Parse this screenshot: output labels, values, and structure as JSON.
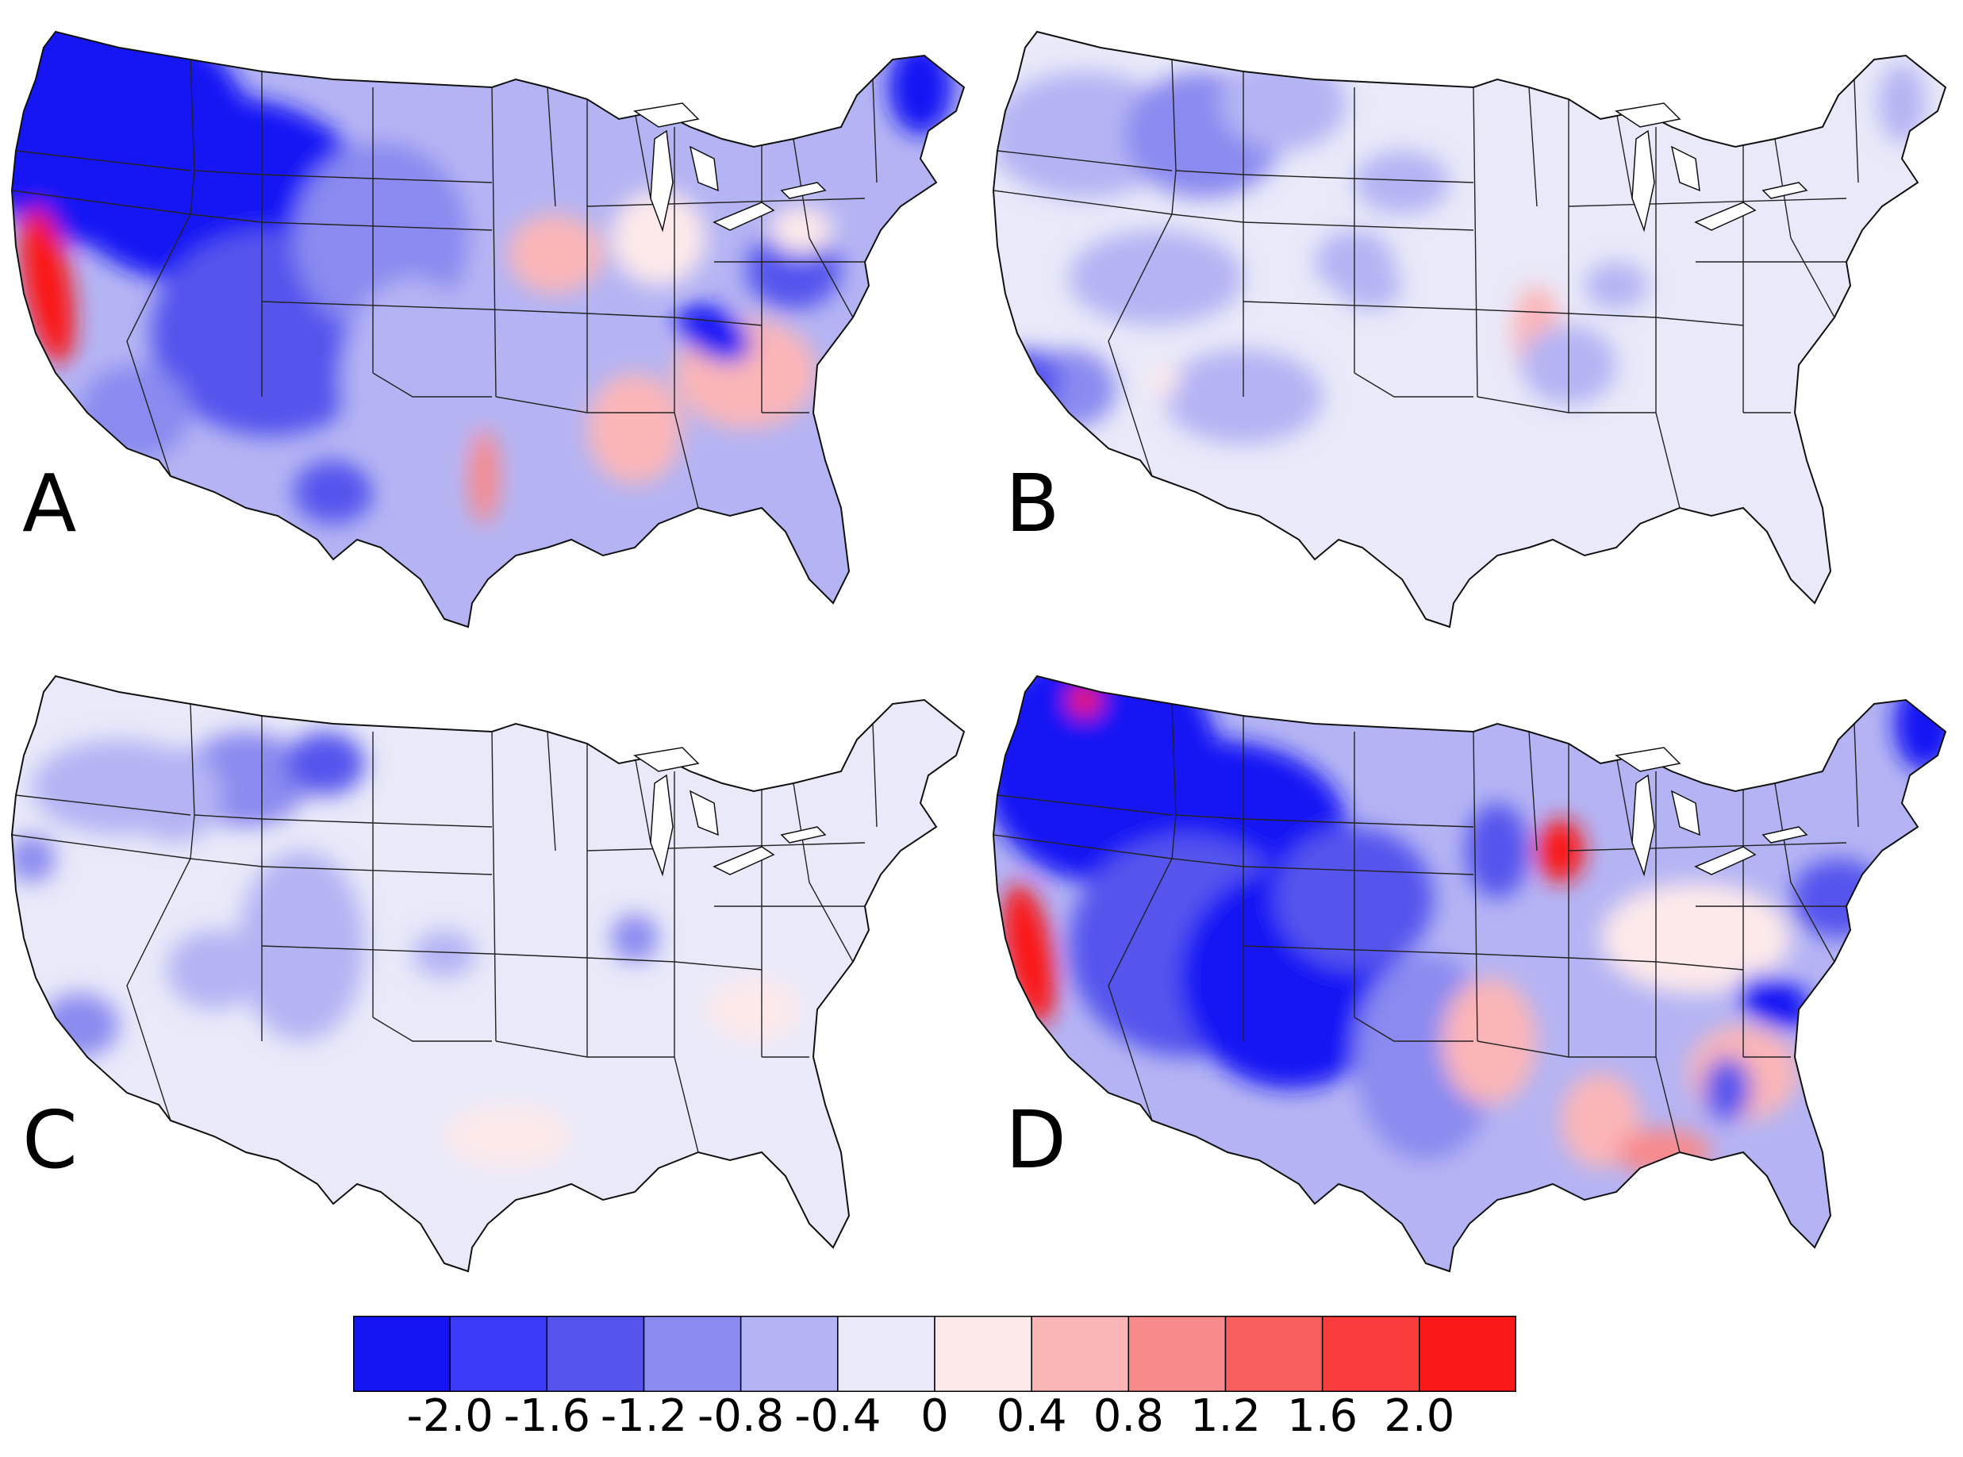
{
  "panels": [
    {
      "id": "A",
      "label": "A"
    },
    {
      "id": "B",
      "label": "B"
    },
    {
      "id": "C",
      "label": "C"
    },
    {
      "id": "D",
      "label": "D"
    }
  ],
  "colorbar": {
    "colors": [
      "#1414f5",
      "#3a3af8",
      "#5555ee",
      "#8a8af0",
      "#b4b4f4",
      "#e9e9f9",
      "#fde9ea",
      "#fbb5b7",
      "#f88a8c",
      "#f85f5f",
      "#f93c3c",
      "#fb1818"
    ],
    "tick_labels": [
      "-2.0",
      "-1.6",
      "-1.2",
      "-0.8",
      "-0.4",
      "0",
      "0.4",
      "0.8",
      "1.2",
      "1.6",
      "2.0"
    ]
  },
  "map_colors": {
    "strong_blue": "#1414f5",
    "mid_blue": "#5555ee",
    "light_blue": "#8a8af0",
    "pale_blue": "#b4b4f4",
    "near_zero": "#e9e9f9",
    "pale_red": "#fde9ea",
    "light_red": "#fbb5b7",
    "mid_red": "#f88a8c",
    "strong_red": "#fb1818"
  }
}
